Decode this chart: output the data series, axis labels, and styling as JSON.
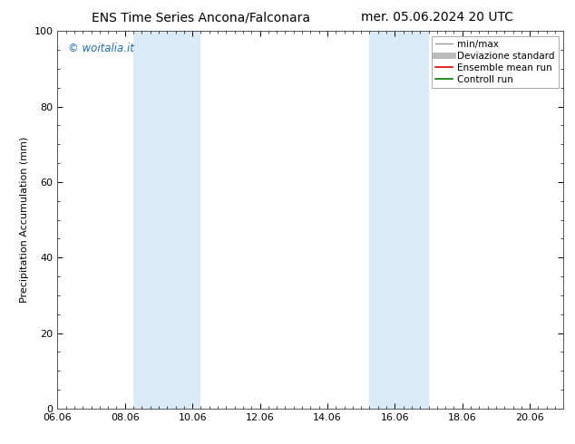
{
  "title_left": "ENS Time Series Ancona/Falconara",
  "title_right": "mer. 05.06.2024 20 UTC",
  "ylabel": "Precipitation Accumulation (mm)",
  "watermark": "© woitalia.it",
  "watermark_color": "#1a6ebd",
  "ylim": [
    0,
    100
  ],
  "xtick_labels": [
    "06.06",
    "08.06",
    "10.06",
    "12.06",
    "14.06",
    "16.06",
    "18.06",
    "20.06"
  ],
  "xtick_positions": [
    0,
    2,
    4,
    6,
    8,
    10,
    12,
    14
  ],
  "ytick_labels": [
    "0",
    "20",
    "40",
    "60",
    "80",
    "100"
  ],
  "ytick_positions": [
    0,
    20,
    40,
    60,
    80,
    100
  ],
  "shaded_regions": [
    {
      "x_start": 2.25,
      "x_end": 4.25,
      "color": "#daeaf7"
    },
    {
      "x_start": 9.25,
      "x_end": 11.0,
      "color": "#daeaf7"
    }
  ],
  "background_color": "#ffffff",
  "plot_bg_color": "#ffffff",
  "legend_items": [
    {
      "label": "min/max",
      "color": "#999999",
      "linewidth": 1.0,
      "linestyle": "-"
    },
    {
      "label": "Deviazione standard",
      "color": "#bbbbbb",
      "linewidth": 5,
      "linestyle": "-"
    },
    {
      "label": "Ensemble mean run",
      "color": "#dd0000",
      "linewidth": 1.2,
      "linestyle": "-"
    },
    {
      "label": "Controll run",
      "color": "#007700",
      "linewidth": 1.2,
      "linestyle": "-"
    }
  ],
  "title_fontsize": 10,
  "axis_label_fontsize": 8,
  "tick_fontsize": 8,
  "legend_fontsize": 7.5,
  "watermark_fontsize": 8.5
}
